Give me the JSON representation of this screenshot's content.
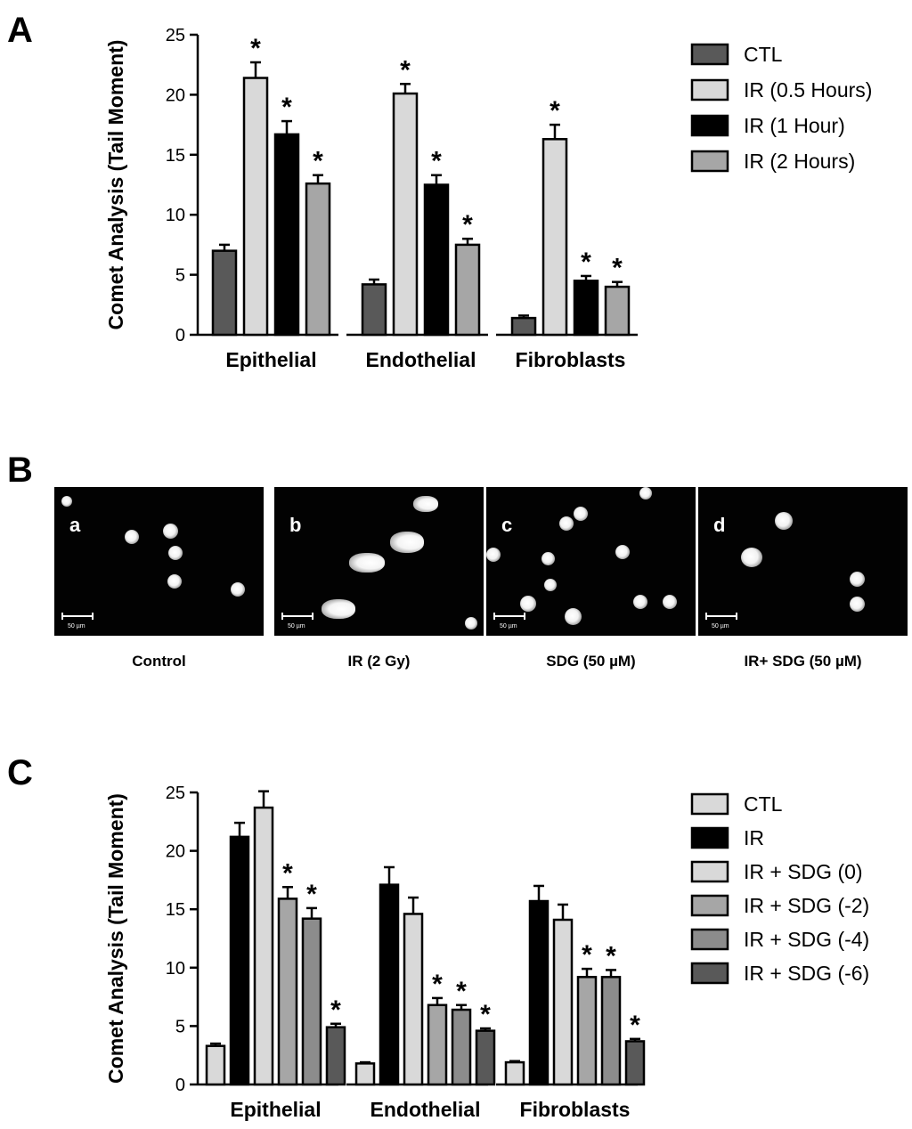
{
  "panels": {
    "a": "A",
    "b": "B",
    "c": "C"
  },
  "chart_data": [
    {
      "type": "bar",
      "panel": "A",
      "ylabel": "Comet Analysis (Tail Moment)",
      "ylim": [
        0,
        25
      ],
      "yticks": [
        0,
        5,
        10,
        15,
        20,
        25
      ],
      "categories": [
        "Epithelial",
        "Endothelial",
        "Fibroblasts"
      ],
      "legend_position": "top-right",
      "series": [
        {
          "name": "CTL",
          "color": "#595959",
          "values": [
            7.0,
            4.2,
            1.4
          ],
          "errors": [
            0.5,
            0.4,
            0.2
          ],
          "significant": [
            false,
            false,
            false
          ]
        },
        {
          "name": "IR (0.5 Hours)",
          "color": "#d9d9d9",
          "values": [
            21.4,
            20.1,
            16.3
          ],
          "errors": [
            1.3,
            0.8,
            1.2
          ],
          "significant": [
            true,
            true,
            true
          ]
        },
        {
          "name": "IR (1 Hour)",
          "color": "#000000",
          "values": [
            16.7,
            12.5,
            4.5
          ],
          "errors": [
            1.1,
            0.8,
            0.4
          ],
          "significant": [
            true,
            true,
            true
          ]
        },
        {
          "name": "IR (2 Hours)",
          "color": "#a6a6a6",
          "values": [
            12.6,
            7.5,
            4.0
          ],
          "errors": [
            0.7,
            0.5,
            0.4
          ],
          "significant": [
            true,
            true,
            true
          ]
        }
      ],
      "annotation_symbol": "*"
    },
    {
      "type": "bar",
      "panel": "C",
      "ylabel": "Comet Analysis (Tail Moment)",
      "ylim": [
        0,
        25
      ],
      "yticks": [
        0,
        5,
        10,
        15,
        20,
        25
      ],
      "categories": [
        "Epithelial",
        "Endothelial",
        "Fibroblasts"
      ],
      "legend_position": "top-right",
      "series": [
        {
          "name": "CTL",
          "color": "#d9d9d9",
          "values": [
            3.3,
            1.8,
            1.9
          ],
          "errors": [
            0.2,
            0.1,
            0.1
          ],
          "significant": [
            false,
            false,
            false
          ]
        },
        {
          "name": "IR",
          "color": "#000000",
          "values": [
            21.2,
            17.1,
            15.7
          ],
          "errors": [
            1.2,
            1.5,
            1.3
          ],
          "significant": [
            false,
            false,
            false
          ]
        },
        {
          "name": "IR + SDG (0)",
          "color": "#d9d9d9",
          "values": [
            23.7,
            14.6,
            14.1
          ],
          "errors": [
            1.4,
            1.4,
            1.3
          ],
          "significant": [
            false,
            false,
            false
          ]
        },
        {
          "name": "IR + SDG (-2)",
          "color": "#a6a6a6",
          "values": [
            15.9,
            6.8,
            9.2
          ],
          "errors": [
            1.0,
            0.6,
            0.7
          ],
          "significant": [
            true,
            true,
            true
          ]
        },
        {
          "name": "IR + SDG (-4)",
          "color": "#8c8c8c",
          "values": [
            14.2,
            6.4,
            9.2
          ],
          "errors": [
            0.9,
            0.4,
            0.6
          ],
          "significant": [
            true,
            true,
            true
          ]
        },
        {
          "name": "IR + SDG (-6)",
          "color": "#595959",
          "values": [
            4.9,
            4.6,
            3.7
          ],
          "errors": [
            0.3,
            0.2,
            0.2
          ],
          "significant": [
            true,
            true,
            true
          ]
        }
      ],
      "annotation_symbol": "*"
    }
  ],
  "micrographs": [
    {
      "sub": "a",
      "label": "Control",
      "scale": "50 µm"
    },
    {
      "sub": "b",
      "label": "IR (2 Gy)",
      "scale": "50 µm"
    },
    {
      "sub": "c",
      "label": "SDG (50 µM)",
      "scale": "50 µm"
    },
    {
      "sub": "d",
      "label": "IR+ SDG (50 µM)",
      "scale": "50 µm"
    }
  ]
}
